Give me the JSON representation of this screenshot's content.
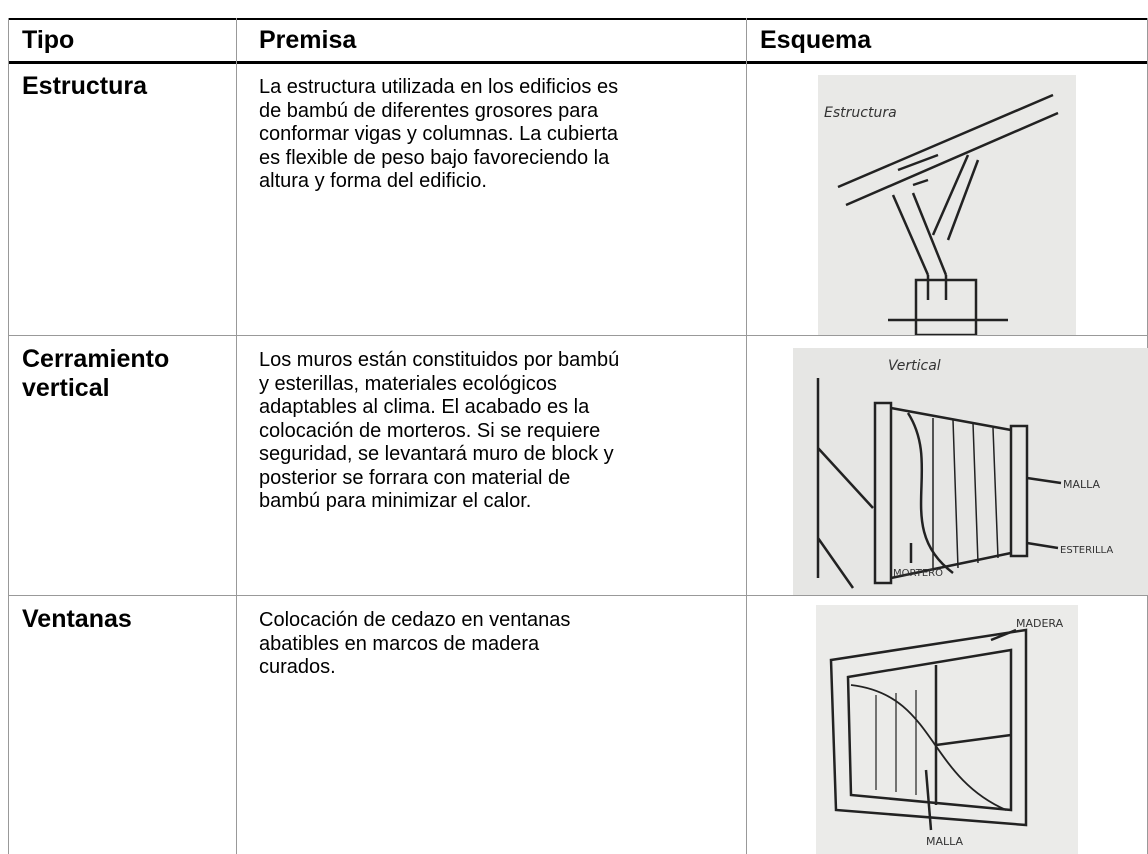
{
  "header": {
    "tipo": "Tipo",
    "premisa": "Premisa",
    "esquema": "Esquema"
  },
  "rows": [
    {
      "tipo": [
        "Estructura"
      ],
      "premisa": [
        "La estructura utilizada en los edificios es",
        "de bambú de diferentes grosores para",
        "conformar vigas y columnas. La cubierta",
        "es flexible de peso bajo favoreciendo la",
        "altura y forma del edificio."
      ],
      "sketch_labels": [
        "Estructura"
      ]
    },
    {
      "tipo": [
        "Cerramiento",
        "vertical"
      ],
      "premisa": [
        "Los muros están constituidos por bambú",
        "y esterillas, materiales ecológicos",
        "adaptables al clima. El acabado es la",
        "colocación de morteros. Si se requiere",
        "seguridad, se levantará muro de block y",
        "posterior se forrara con material de",
        "bambú para minimizar el calor."
      ],
      "sketch_labels": [
        "Vertical",
        "MALLA",
        "ESTERILLA",
        "MORTERO"
      ]
    },
    {
      "tipo": [
        "Ventanas"
      ],
      "premisa": [
        "Colocación de cedazo en ventanas",
        "abatibles en marcos de madera",
        "curados."
      ],
      "sketch_labels": [
        "MADERA",
        "MALLA"
      ]
    }
  ]
}
